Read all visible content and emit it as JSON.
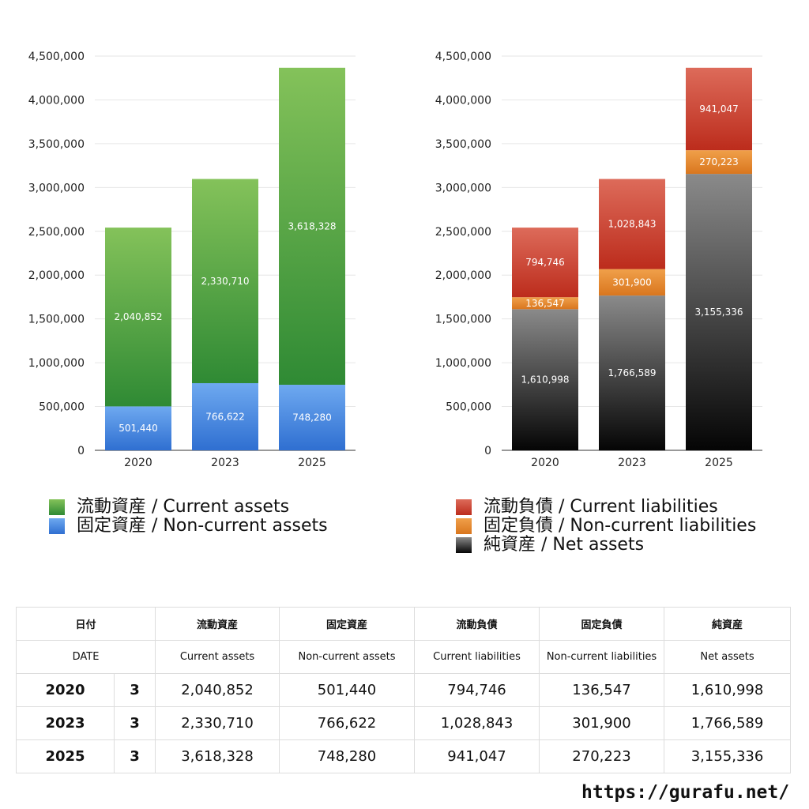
{
  "chart_data": [
    {
      "type": "bar",
      "stacked": true,
      "categories": [
        "2020",
        "2023",
        "2025"
      ],
      "ylim": [
        0,
        4500000
      ],
      "yticks": [
        "0",
        "500,000",
        "1,000,000",
        "1,500,000",
        "2,000,000",
        "2,500,000",
        "3,000,000",
        "3,500,000",
        "4,000,000",
        "4,500,000"
      ],
      "grid": true,
      "legend": "bottom",
      "series": [
        {
          "name": "固定資産 / Non-current assets",
          "values": [
            501440,
            766622,
            748280
          ],
          "labels": [
            "501,440",
            "766,622",
            "748,280"
          ],
          "color_top": "#6ea9f0",
          "color_bottom": "#2f6fd1"
        },
        {
          "name": "流動資産 / Current assets",
          "values": [
            2040852,
            2330710,
            3618328
          ],
          "labels": [
            "2,040,852",
            "2,330,710",
            "3,618,328"
          ],
          "color_top": "#84c25a",
          "color_bottom": "#2f8a34"
        }
      ]
    },
    {
      "type": "bar",
      "stacked": true,
      "categories": [
        "2020",
        "2023",
        "2025"
      ],
      "ylim": [
        0,
        4500000
      ],
      "yticks": [
        "0",
        "500,000",
        "1,000,000",
        "1,500,000",
        "2,000,000",
        "2,500,000",
        "3,000,000",
        "3,500,000",
        "4,000,000",
        "4,500,000"
      ],
      "grid": true,
      "legend": "bottom",
      "series": [
        {
          "name": "純資産 / Net assets",
          "values": [
            1610998,
            1766589,
            3155336
          ],
          "labels": [
            "1,610,998",
            "1,766,589",
            "3,155,336"
          ],
          "color_top": "#8a8a8a",
          "color_bottom": "#050505"
        },
        {
          "name": "固定負債 / Non-current liabilities",
          "values": [
            136547,
            301900,
            270223
          ],
          "labels": [
            "136,547",
            "301,900",
            "270,223"
          ],
          "color_top": "#f0a04a",
          "color_bottom": "#d9761e"
        },
        {
          "name": "流動負債 / Current liabilities",
          "values": [
            794746,
            1028843,
            941047
          ],
          "labels": [
            "794,746",
            "1,028,843",
            "941,047"
          ],
          "color_top": "#dd6b5a",
          "color_bottom": "#bc2c1c"
        }
      ]
    }
  ],
  "legend_left": [
    {
      "label": "流動資産 / Current assets",
      "color": "#4ea43f"
    },
    {
      "label": "固定資産 / Non-current assets",
      "color": "#3d83dd"
    }
  ],
  "legend_right": [
    {
      "label": "流動負債 / Current liabilities",
      "color": "#d84a3a"
    },
    {
      "label": "固定負債 / Non-current liabilities",
      "color": "#ea8a30"
    },
    {
      "label": "純資産 / Net assets",
      "color": "#2a2a2a"
    }
  ],
  "table": {
    "header_jp": [
      "日付",
      "流動資産",
      "固定資産",
      "流動負債",
      "固定負債",
      "純資産"
    ],
    "header_en": [
      "DATE",
      "Current assets",
      "Non-current assets",
      "Current liabilities",
      "Non-current liabilities",
      "Net assets"
    ],
    "rows": [
      {
        "year": "2020",
        "month": "3",
        "cells": [
          "2,040,852",
          "501,440",
          "794,746",
          "136,547",
          "1,610,998"
        ]
      },
      {
        "year": "2023",
        "month": "3",
        "cells": [
          "2,330,710",
          "766,622",
          "1,028,843",
          "301,900",
          "1,766,589"
        ]
      },
      {
        "year": "2025",
        "month": "3",
        "cells": [
          "3,618,328",
          "748,280",
          "941,047",
          "270,223",
          "3,155,336"
        ]
      }
    ]
  },
  "site_url": "https://gurafu.net/"
}
